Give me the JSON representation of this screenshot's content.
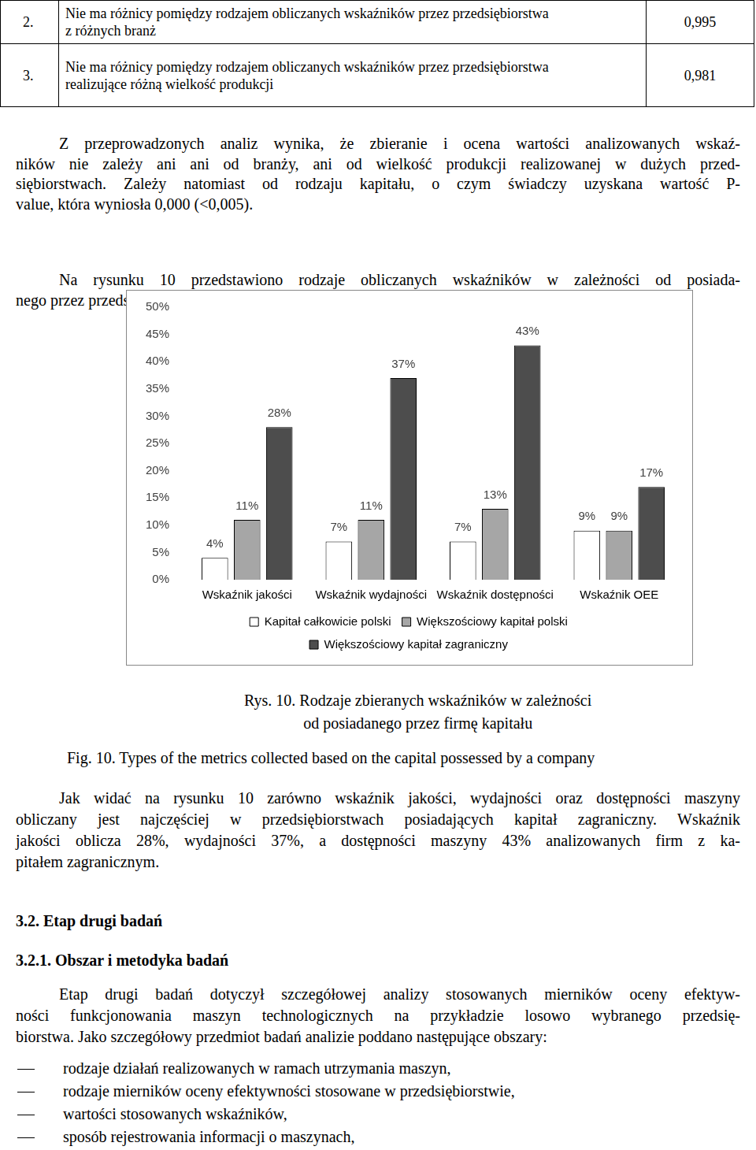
{
  "table": {
    "rows": [
      {
        "number": "2.",
        "text": [
          "Nie ma różnicy pomiędzy rodzajem obliczanych wskaźników przez przedsiębiorstwa",
          "z różnych branż"
        ],
        "value": "0,995"
      },
      {
        "number": "3.",
        "text": [
          "Nie ma różnicy pomiędzy rodzajem obliczanych wskaźników przez przedsiębiorstwa",
          "realizujące różną wielkość produkcji"
        ],
        "value": "0,981"
      }
    ]
  },
  "text_before": [
    [
      "Z przeprowadzonych analiz wynika, że zbieranie i ocena wartości analizowanych wskaź-",
      "ników nie zależy ani ani od branży, ani od wielkość produkcji realizowanej w dużych przed-",
      "siębiorstwach. Zależy natomiast od rodzaju kapitału, o czym świadczy uzyskana wartość P-",
      "value, która wyniosła 0,000 (<0,005)."
    ],
    [
      "Na rysunku 10 przedstawiono rodzaje obliczanych wskaźników w zależności od posiada-",
      "nego przez przedsiębiorstwa rodzaju kapitału."
    ]
  ],
  "chart_data": {
    "type": "bar",
    "categories": [
      "Wskaźnik jakości",
      "Wskaźnik wydajności",
      "Wskaźnik dostępności",
      "Wskaźnik OEE"
    ],
    "series": [
      {
        "name": "Kapitał całkowicie polski",
        "color": "#ffffff",
        "values": [
          4,
          7,
          7,
          9
        ],
        "value_labels": [
          "4%",
          "7%",
          "7%",
          "9%"
        ]
      },
      {
        "name": "Większościowy kapitał polski",
        "color": "#a6a6a6",
        "values": [
          11,
          11,
          13,
          9
        ],
        "value_labels": [
          "11%",
          "11%",
          "13%",
          "9%"
        ]
      },
      {
        "name": "Większościowy kapitał zagraniczny",
        "color": "#4d4d4d",
        "values": [
          28,
          37,
          43,
          17
        ],
        "value_labels": [
          "28%",
          "37%",
          "43%",
          "17%"
        ]
      }
    ],
    "ylim": [
      0,
      50
    ],
    "yticks": [
      {
        "value": 0,
        "label": "0%"
      },
      {
        "value": 5,
        "label": "5%"
      },
      {
        "value": 10,
        "label": "10%"
      },
      {
        "value": 15,
        "label": "15%"
      },
      {
        "value": 20,
        "label": "20%"
      },
      {
        "value": 25,
        "label": "25%"
      },
      {
        "value": 30,
        "label": "30%"
      },
      {
        "value": 35,
        "label": "35%"
      },
      {
        "value": 40,
        "label": "40%"
      },
      {
        "value": 45,
        "label": "45%"
      },
      {
        "value": 50,
        "label": "50%"
      }
    ],
    "grid": false,
    "legend": "bottom",
    "data_labels": true
  },
  "caption_pl": [
    "Rys. 10. Rodzaje zbieranych wskaźników w zależności",
    "od posiadanego przez firmę kapitału"
  ],
  "caption_en": "Fig. 10. Types of the metrics collected based on the capital possessed by a company",
  "text_after": [
    [
      "Jak widać na rysunku 10 zarówno wskaźnik jakości, wydajności oraz dostępności maszyny",
      "obliczany jest najczęściej w przedsiębiorstwach posiadających kapitał zagraniczny. Wskaźnik",
      "jakości oblicza 28%, wydajności 37%, a dostępności maszyny 43% analizowanych firm z ka-",
      "pitałem zagranicznym."
    ]
  ],
  "heading_1": "3.2. Etap drugi badań",
  "heading_2": "3.2.1. Obszar i metodyka badań",
  "text_final": [
    [
      "Etap drugi badań dotyczył szczegółowej analizy stosowanych mierników oceny efektyw-",
      "ności funkcjonowania maszyn technologicznych na przykładzie losowo wybranego przedsię-",
      "biorstwa. Jako szczegółowy przedmiot badań analizie poddano następujące obszary:"
    ]
  ],
  "list": [
    "rodzaje działań realizowanych w ramach utrzymania maszyn,",
    "rodzaje mierników oceny efektywności stosowane w przedsiębiorstwie,",
    "wartości stosowanych wskaźników,",
    "sposób rejestrowania informacji o maszynach,"
  ]
}
